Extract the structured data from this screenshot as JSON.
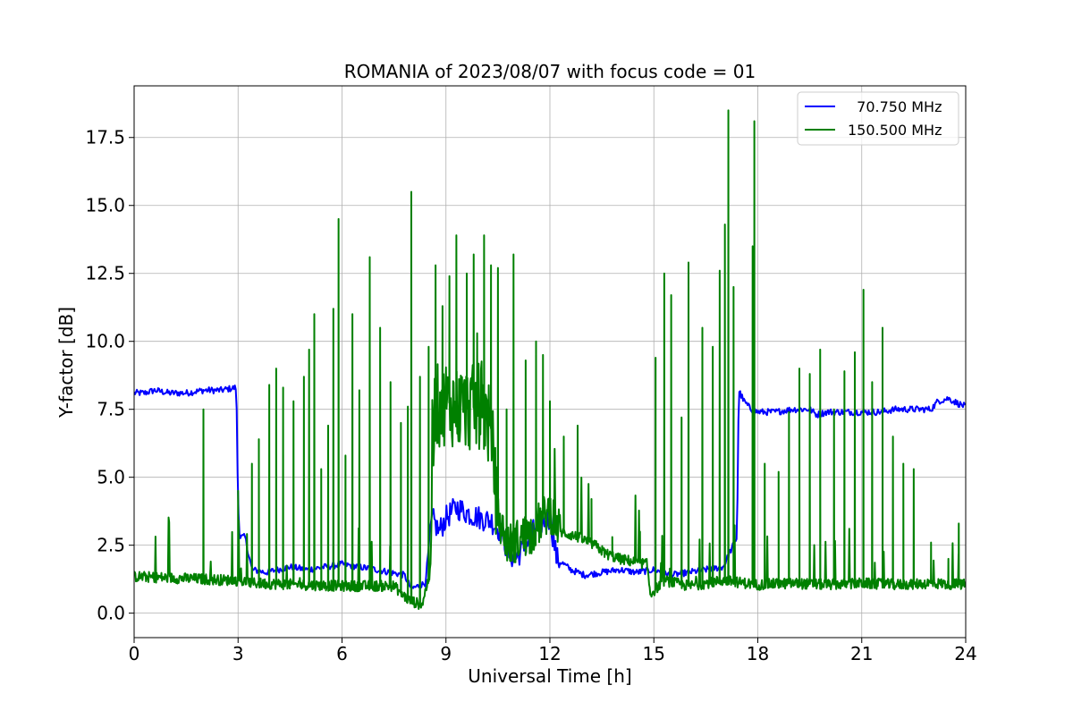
{
  "chart_data": {
    "type": "line",
    "title": "ROMANIA of 2023/08/07 with focus code = 01",
    "xlabel": "Universal Time [h]",
    "ylabel": "Y-factor [dB]",
    "xlim": [
      0,
      24
    ],
    "ylim": [
      -0.9,
      19.4
    ],
    "xticks": [
      0,
      3,
      6,
      9,
      12,
      15,
      18,
      21,
      24
    ],
    "yticks": [
      0.0,
      2.5,
      5.0,
      7.5,
      10.0,
      12.5,
      15.0,
      17.5
    ],
    "ytick_labels": [
      "0.0",
      "2.5",
      "5.0",
      "7.5",
      "10.0",
      "12.5",
      "15.0",
      "17.5"
    ],
    "grid": true,
    "legend_position": "top-right",
    "series": [
      {
        "name": "  70.750 MHz",
        "color": "#0000ff",
        "x": [
          0,
          0.3,
          0.6,
          1.0,
          1.5,
          2.0,
          2.5,
          2.95,
          3.0,
          3.05,
          3.2,
          3.4,
          3.8,
          4.5,
          5.0,
          6.0,
          7.0,
          7.8,
          8.0,
          8.4,
          8.6,
          8.8,
          9.0,
          9.3,
          9.6,
          10.0,
          10.3,
          10.6,
          10.8,
          11.0,
          11.3,
          11.6,
          12.0,
          12.2,
          12.6,
          13.0,
          13.5,
          14.0,
          14.5,
          15.0,
          15.5,
          16.0,
          16.5,
          17.0,
          17.4,
          17.45,
          17.6,
          17.8,
          18.0,
          18.5,
          19.0,
          19.5,
          19.7,
          20.0,
          20.5,
          21.0,
          21.5,
          22.0,
          22.5,
          23.0,
          23.2,
          23.5,
          23.8,
          24.0
        ],
        "values": [
          8.1,
          8.1,
          8.2,
          8.1,
          8.1,
          8.2,
          8.2,
          8.3,
          4.0,
          2.8,
          2.8,
          1.6,
          1.5,
          1.7,
          1.6,
          1.8,
          1.6,
          1.4,
          0.9,
          1.1,
          3.5,
          3.0,
          3.5,
          3.9,
          3.7,
          3.5,
          3.4,
          3.0,
          2.2,
          2.0,
          2.5,
          3.2,
          3.5,
          2.0,
          1.6,
          1.4,
          1.5,
          1.6,
          1.5,
          1.6,
          1.4,
          1.5,
          1.6,
          1.7,
          2.8,
          8.2,
          7.8,
          7.5,
          7.4,
          7.4,
          7.5,
          7.5,
          7.3,
          7.4,
          7.4,
          7.4,
          7.4,
          7.5,
          7.5,
          7.5,
          7.8,
          7.9,
          7.7,
          7.6
        ]
      },
      {
        "name": "150.500 MHz",
        "color": "#008000",
        "baseline": [
          [
            0,
            1.35
          ],
          [
            3.0,
            1.2
          ],
          [
            3.5,
            1.1
          ],
          [
            6.0,
            1.0
          ],
          [
            7.5,
            1.0
          ],
          [
            7.9,
            0.5
          ],
          [
            8.3,
            0.3
          ],
          [
            8.55,
            1.5
          ],
          [
            8.65,
            7.5
          ],
          [
            9.0,
            7.8
          ],
          [
            9.5,
            7.5
          ],
          [
            10.0,
            7.6
          ],
          [
            10.3,
            6.8
          ],
          [
            10.5,
            3.5
          ],
          [
            10.8,
            2.5
          ],
          [
            11.5,
            3.0
          ],
          [
            12.0,
            3.8
          ],
          [
            12.3,
            3.0
          ],
          [
            12.8,
            2.8
          ],
          [
            13.3,
            2.5
          ],
          [
            13.6,
            2.2
          ],
          [
            14.0,
            2.0
          ],
          [
            14.8,
            1.8
          ],
          [
            14.9,
            0.7
          ],
          [
            15.3,
            1.2
          ],
          [
            16.0,
            1.0
          ],
          [
            17.0,
            1.2
          ],
          [
            18.0,
            1.05
          ],
          [
            19.0,
            1.1
          ],
          [
            20.0,
            1.05
          ],
          [
            21.0,
            1.1
          ],
          [
            22.0,
            1.05
          ],
          [
            23.0,
            1.1
          ],
          [
            24.0,
            1.05
          ]
        ],
        "spikes": [
          [
            2.0,
            7.5
          ],
          [
            3.0,
            4.5
          ],
          [
            3.4,
            5.5
          ],
          [
            3.6,
            6.4
          ],
          [
            3.9,
            8.4
          ],
          [
            4.1,
            9.0
          ],
          [
            4.3,
            8.3
          ],
          [
            4.6,
            7.8
          ],
          [
            4.9,
            8.7
          ],
          [
            5.05,
            9.7
          ],
          [
            5.2,
            11.0
          ],
          [
            5.4,
            5.3
          ],
          [
            5.6,
            6.9
          ],
          [
            5.75,
            11.2
          ],
          [
            5.9,
            14.5
          ],
          [
            6.1,
            5.8
          ],
          [
            6.3,
            11.0
          ],
          [
            6.5,
            8.2
          ],
          [
            6.8,
            13.1
          ],
          [
            7.1,
            10.5
          ],
          [
            7.4,
            8.5
          ],
          [
            7.7,
            7.0
          ],
          [
            7.9,
            7.6
          ],
          [
            8.0,
            15.5
          ],
          [
            8.25,
            8.7
          ],
          [
            8.5,
            9.8
          ],
          [
            8.7,
            12.8
          ],
          [
            8.9,
            11.3
          ],
          [
            9.1,
            12.4
          ],
          [
            9.3,
            13.9
          ],
          [
            9.6,
            12.5
          ],
          [
            9.8,
            13.2
          ],
          [
            9.9,
            10.3
          ],
          [
            10.1,
            13.9
          ],
          [
            10.3,
            12.8
          ],
          [
            10.5,
            12.7
          ],
          [
            10.75,
            7.5
          ],
          [
            10.95,
            13.2
          ],
          [
            11.3,
            9.3
          ],
          [
            11.6,
            10.0
          ],
          [
            11.8,
            9.5
          ],
          [
            12.0,
            7.8
          ],
          [
            12.4,
            6.5
          ],
          [
            12.8,
            6.9
          ],
          [
            13.2,
            4.2
          ],
          [
            13.8,
            2.8
          ],
          [
            14.6,
            3.0
          ],
          [
            15.05,
            9.4
          ],
          [
            15.3,
            12.5
          ],
          [
            15.5,
            11.7
          ],
          [
            15.8,
            7.2
          ],
          [
            16.0,
            12.9
          ],
          [
            16.4,
            10.5
          ],
          [
            16.7,
            9.8
          ],
          [
            16.9,
            12.6
          ],
          [
            17.05,
            14.3
          ],
          [
            17.15,
            18.5
          ],
          [
            17.3,
            12.0
          ],
          [
            17.9,
            18.1
          ],
          [
            17.85,
            13.5
          ],
          [
            18.2,
            5.5
          ],
          [
            18.6,
            5.2
          ],
          [
            18.9,
            7.4
          ],
          [
            19.2,
            9.0
          ],
          [
            19.5,
            8.8
          ],
          [
            19.8,
            9.7
          ],
          [
            20.2,
            7.5
          ],
          [
            20.5,
            8.9
          ],
          [
            20.8,
            9.6
          ],
          [
            21.05,
            11.9
          ],
          [
            21.3,
            8.5
          ],
          [
            21.6,
            10.5
          ],
          [
            21.9,
            6.5
          ],
          [
            22.2,
            5.5
          ],
          [
            22.5,
            5.3
          ],
          [
            23.0,
            2.6
          ],
          [
            23.5,
            2.0
          ],
          [
            23.8,
            3.3
          ]
        ]
      }
    ]
  }
}
